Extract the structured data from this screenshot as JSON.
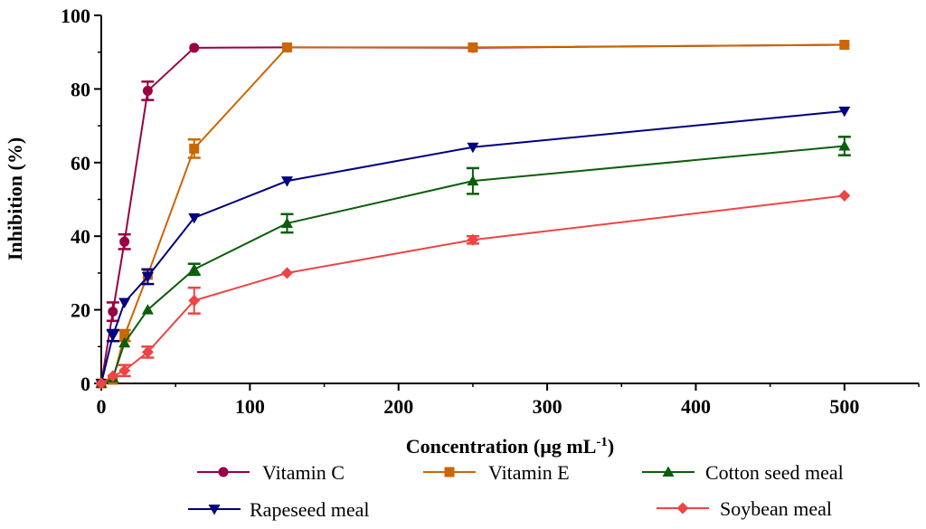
{
  "chart_data": {
    "type": "line",
    "title": "",
    "xlabel": "Concentration (µg mL",
    "xlabel_sup": "-1",
    "xlabel_close": ")",
    "ylabel": "Inhibition (%)",
    "xlim": [
      0,
      550
    ],
    "ylim": [
      0,
      100
    ],
    "xticks": [
      0,
      100,
      200,
      300,
      400,
      500
    ],
    "yticks": [
      0,
      20,
      40,
      60,
      80,
      100
    ],
    "grid": false,
    "legend_position": "bottom",
    "x": [
      0,
      7.8,
      15.6,
      31.25,
      62.5,
      125,
      250,
      500
    ],
    "series": [
      {
        "name": "Vitamin C",
        "color": "#990044",
        "marker": "circle",
        "x": [
          0,
          7.8,
          15.6,
          31.25,
          62.5,
          125,
          250,
          500
        ],
        "values": [
          0,
          19.5,
          38.5,
          79.5,
          91.2,
          91.3,
          91.2,
          92.0
        ],
        "errors": [
          0,
          2.5,
          2.0,
          2.5,
          0,
          0,
          0,
          0
        ]
      },
      {
        "name": "Vitamin E",
        "color": "#cc6600",
        "marker": "square",
        "x": [
          0,
          7.8,
          15.6,
          31.25,
          62.5,
          125,
          250,
          500
        ],
        "values": [
          0,
          1.0,
          13.0,
          29.5,
          63.8,
          91.3,
          91.3,
          92.0
        ],
        "errors": [
          0,
          0,
          1.5,
          0,
          2.5,
          0,
          0,
          0
        ]
      },
      {
        "name": "Cotton seed meal",
        "color": "#0b5e0b",
        "marker": "triangle-up",
        "x": [
          0,
          7.8,
          15.6,
          31.25,
          62.5,
          125,
          250,
          500
        ],
        "values": [
          0,
          1.5,
          11.0,
          20.0,
          31.0,
          43.5,
          55.0,
          64.5
        ],
        "errors": [
          0,
          0,
          0,
          0,
          1.5,
          2.5,
          3.5,
          2.5
        ]
      },
      {
        "name": "Rapeseed meal",
        "color": "#000080",
        "marker": "triangle-down",
        "x": [
          0,
          7.8,
          15.6,
          31.25,
          62.5,
          125,
          250,
          500
        ],
        "values": [
          0,
          13.0,
          22.0,
          29.0,
          45.0,
          55.0,
          64.2,
          74.0
        ],
        "errors": [
          0,
          1.5,
          0,
          2.0,
          0,
          0,
          0,
          0
        ]
      },
      {
        "name": "Soybean meal",
        "color": "#ee4444",
        "marker": "diamond",
        "x": [
          0,
          7.8,
          15.6,
          31.25,
          62.5,
          125,
          250,
          500
        ],
        "values": [
          0,
          2.0,
          3.5,
          8.5,
          22.5,
          30.0,
          39.0,
          51.0
        ],
        "errors": [
          0,
          0,
          1.5,
          1.5,
          3.5,
          0,
          1.0,
          0
        ]
      }
    ]
  }
}
